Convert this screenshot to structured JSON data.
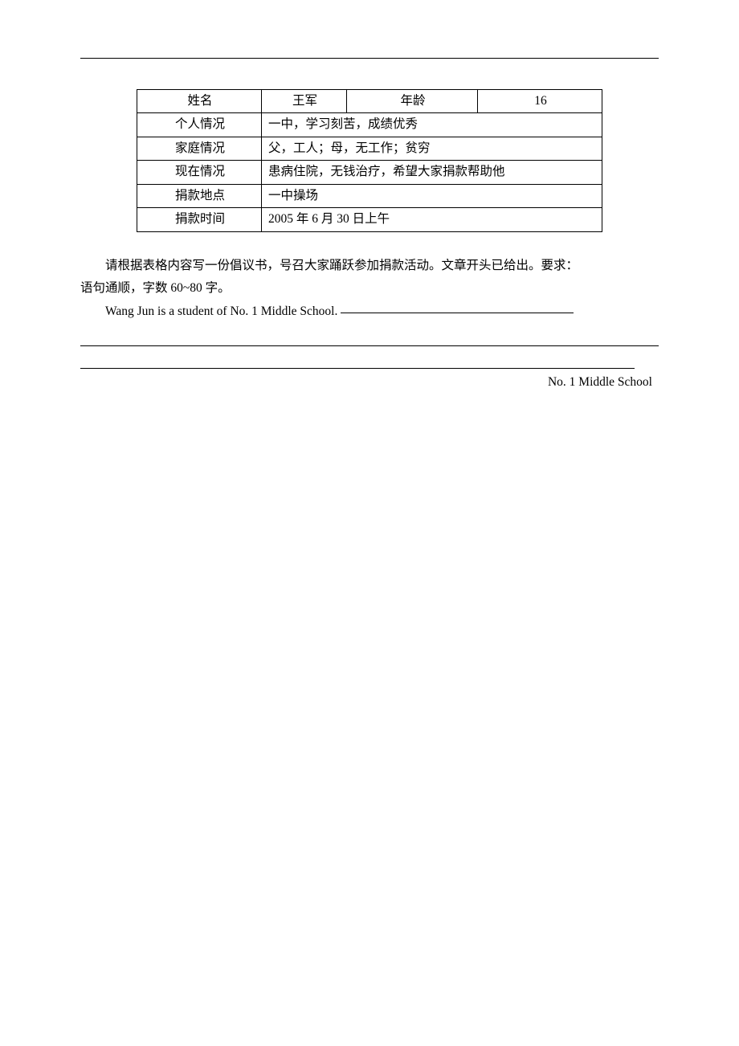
{
  "table": {
    "rows": [
      {
        "label": "姓名",
        "col2": "王军",
        "col3": "年龄",
        "col4": "16",
        "fourCol": true
      },
      {
        "label": "个人情况",
        "value": "一中，学习刻苦，成绩优秀"
      },
      {
        "label": "家庭情况",
        "value": "父，工人；母，无工作；贫穷"
      },
      {
        "label": "现在情况",
        "value": "患病住院，无钱治疗，希望大家捐款帮助他"
      },
      {
        "label": "捐款地点",
        "value": "一中操场"
      },
      {
        "label": "捐款时间",
        "value": "2005 年 6 月 30 日上午"
      }
    ]
  },
  "instruction": {
    "line1": "请根据表格内容写一份倡议书，号召大家踊跃参加捐款活动。文章开头已给出。要求：",
    "line2": "语句通顺，字数 60~80 字。"
  },
  "opening": "Wang Jun is a student of No. 1 Middle School. ",
  "signature": "No. 1 Middle School"
}
